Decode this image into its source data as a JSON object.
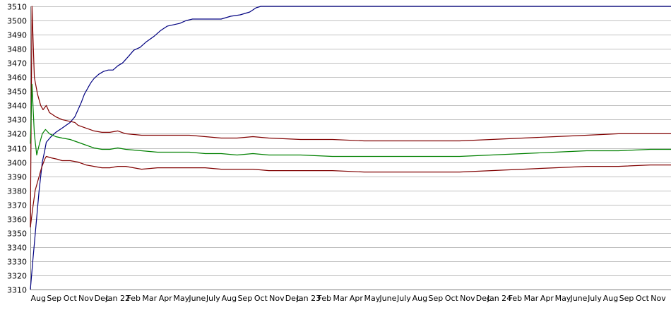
{
  "chart_data": {
    "type": "line",
    "title": "",
    "xlabel": "",
    "ylabel": "",
    "ylim": [
      3310,
      3510
    ],
    "y_ticks": [
      3310,
      3320,
      3330,
      3340,
      3350,
      3360,
      3370,
      3380,
      3390,
      3400,
      3410,
      3420,
      3430,
      3440,
      3450,
      3460,
      3470,
      3480,
      3490,
      3500,
      3510
    ],
    "x_ticks": [
      "Aug",
      "Sep",
      "Oct",
      "Nov",
      "Dec",
      "Jan 22",
      "Feb",
      "Mar",
      "Apr",
      "May",
      "June",
      "July",
      "Aug",
      "Sep",
      "Oct",
      "Nov",
      "Dec",
      "Jan 23",
      "Feb",
      "Mar",
      "Apr",
      "May",
      "June",
      "July",
      "Aug",
      "Sep",
      "Oct",
      "Nov",
      "Dec",
      "Jan 24",
      "Feb",
      "Mar",
      "Apr",
      "May",
      "June",
      "July",
      "Aug",
      "Sep",
      "Oct",
      "Nov"
    ],
    "xlim_months": [
      0,
      40.3
    ],
    "grid": true,
    "legend": "none",
    "series": [
      {
        "color": "#000080",
        "points": [
          [
            0,
            3310
          ],
          [
            0.15,
            3330
          ],
          [
            0.35,
            3355
          ],
          [
            0.55,
            3380
          ],
          [
            0.75,
            3400
          ],
          [
            0.9,
            3408
          ],
          [
            1.0,
            3414
          ],
          [
            1.3,
            3418
          ],
          [
            1.6,
            3421
          ],
          [
            2.0,
            3424
          ],
          [
            2.5,
            3428
          ],
          [
            2.8,
            3432
          ],
          [
            3.0,
            3437
          ],
          [
            3.2,
            3442
          ],
          [
            3.4,
            3448
          ],
          [
            3.6,
            3452
          ],
          [
            3.8,
            3456
          ],
          [
            4.0,
            3459
          ],
          [
            4.3,
            3462
          ],
          [
            4.6,
            3464
          ],
          [
            4.9,
            3465
          ],
          [
            5.2,
            3465
          ],
          [
            5.5,
            3468
          ],
          [
            5.8,
            3470
          ],
          [
            6.2,
            3475
          ],
          [
            6.5,
            3479
          ],
          [
            6.9,
            3481
          ],
          [
            7.3,
            3485
          ],
          [
            7.8,
            3489
          ],
          [
            8.2,
            3493
          ],
          [
            8.6,
            3496
          ],
          [
            9.0,
            3497
          ],
          [
            9.4,
            3498
          ],
          [
            9.8,
            3500
          ],
          [
            10.2,
            3501
          ],
          [
            11.0,
            3501
          ],
          [
            12.0,
            3501
          ],
          [
            12.6,
            3503
          ],
          [
            13.2,
            3504
          ],
          [
            13.8,
            3506
          ],
          [
            14.2,
            3509
          ],
          [
            14.5,
            3510
          ],
          [
            40.3,
            3510
          ]
        ]
      },
      {
        "color": "#800000",
        "points": [
          [
            0,
            3354
          ],
          [
            0.1,
            3510
          ],
          [
            0.25,
            3460
          ],
          [
            0.45,
            3448
          ],
          [
            0.65,
            3440
          ],
          [
            0.8,
            3437
          ],
          [
            1.0,
            3440
          ],
          [
            1.2,
            3435
          ],
          [
            1.6,
            3432
          ],
          [
            2.0,
            3430
          ],
          [
            2.4,
            3429
          ],
          [
            2.8,
            3428
          ],
          [
            3.0,
            3426
          ],
          [
            3.5,
            3424
          ],
          [
            4.0,
            3422
          ],
          [
            4.5,
            3421
          ],
          [
            5.0,
            3421
          ],
          [
            5.5,
            3422
          ],
          [
            6.0,
            3420
          ],
          [
            7.0,
            3419
          ],
          [
            8.0,
            3419
          ],
          [
            9.0,
            3419
          ],
          [
            10.0,
            3419
          ],
          [
            11.0,
            3418
          ],
          [
            12.0,
            3417
          ],
          [
            13.0,
            3417
          ],
          [
            14.0,
            3418
          ],
          [
            15.0,
            3417
          ],
          [
            17.0,
            3416
          ],
          [
            19.0,
            3416
          ],
          [
            21.0,
            3415
          ],
          [
            23.0,
            3415
          ],
          [
            25.0,
            3415
          ],
          [
            27.0,
            3415
          ],
          [
            29.0,
            3416
          ],
          [
            31.0,
            3417
          ],
          [
            33.0,
            3418
          ],
          [
            35.0,
            3419
          ],
          [
            37.0,
            3420
          ],
          [
            39.0,
            3420
          ],
          [
            40.3,
            3420
          ]
        ]
      },
      {
        "color": "#800000",
        "points": [
          [
            0,
            3354
          ],
          [
            0.12,
            3365
          ],
          [
            0.3,
            3380
          ],
          [
            0.5,
            3388
          ],
          [
            0.7,
            3396
          ],
          [
            0.9,
            3402
          ],
          [
            1.0,
            3404
          ],
          [
            1.3,
            3403
          ],
          [
            1.7,
            3402
          ],
          [
            2.0,
            3401
          ],
          [
            2.5,
            3401
          ],
          [
            3.0,
            3400
          ],
          [
            3.5,
            3398
          ],
          [
            4.0,
            3397
          ],
          [
            4.5,
            3396
          ],
          [
            5.0,
            3396
          ],
          [
            5.5,
            3397
          ],
          [
            6.0,
            3397
          ],
          [
            7.0,
            3395
          ],
          [
            8.0,
            3396
          ],
          [
            9.0,
            3396
          ],
          [
            10.0,
            3396
          ],
          [
            11.0,
            3396
          ],
          [
            12.0,
            3395
          ],
          [
            13.0,
            3395
          ],
          [
            14.0,
            3395
          ],
          [
            15.0,
            3394
          ],
          [
            17.0,
            3394
          ],
          [
            19.0,
            3394
          ],
          [
            21.0,
            3393
          ],
          [
            23.0,
            3393
          ],
          [
            25.0,
            3393
          ],
          [
            27.0,
            3393
          ],
          [
            29.0,
            3394
          ],
          [
            31.0,
            3395
          ],
          [
            33.0,
            3396
          ],
          [
            35.0,
            3397
          ],
          [
            37.0,
            3397
          ],
          [
            39.0,
            3398
          ],
          [
            40.3,
            3398
          ]
        ]
      },
      {
        "color": "#008000",
        "points": [
          [
            0,
            3413
          ],
          [
            0.1,
            3455
          ],
          [
            0.25,
            3420
          ],
          [
            0.4,
            3405
          ],
          [
            0.55,
            3412
          ],
          [
            0.75,
            3420
          ],
          [
            0.95,
            3423
          ],
          [
            1.2,
            3420
          ],
          [
            1.6,
            3418
          ],
          [
            2.0,
            3417
          ],
          [
            2.5,
            3416
          ],
          [
            3.0,
            3414
          ],
          [
            3.5,
            3412
          ],
          [
            4.0,
            3410
          ],
          [
            4.5,
            3409
          ],
          [
            5.0,
            3409
          ],
          [
            5.5,
            3410
          ],
          [
            6.0,
            3409
          ],
          [
            7.0,
            3408
          ],
          [
            8.0,
            3407
          ],
          [
            9.0,
            3407
          ],
          [
            10.0,
            3407
          ],
          [
            11.0,
            3406
          ],
          [
            12.0,
            3406
          ],
          [
            13.0,
            3405
          ],
          [
            14.0,
            3406
          ],
          [
            15.0,
            3405
          ],
          [
            17.0,
            3405
          ],
          [
            19.0,
            3404
          ],
          [
            21.0,
            3404
          ],
          [
            23.0,
            3404
          ],
          [
            25.0,
            3404
          ],
          [
            27.0,
            3404
          ],
          [
            29.0,
            3405
          ],
          [
            31.0,
            3406
          ],
          [
            33.0,
            3407
          ],
          [
            35.0,
            3408
          ],
          [
            37.0,
            3408
          ],
          [
            39.0,
            3409
          ],
          [
            40.3,
            3409
          ]
        ]
      }
    ]
  }
}
